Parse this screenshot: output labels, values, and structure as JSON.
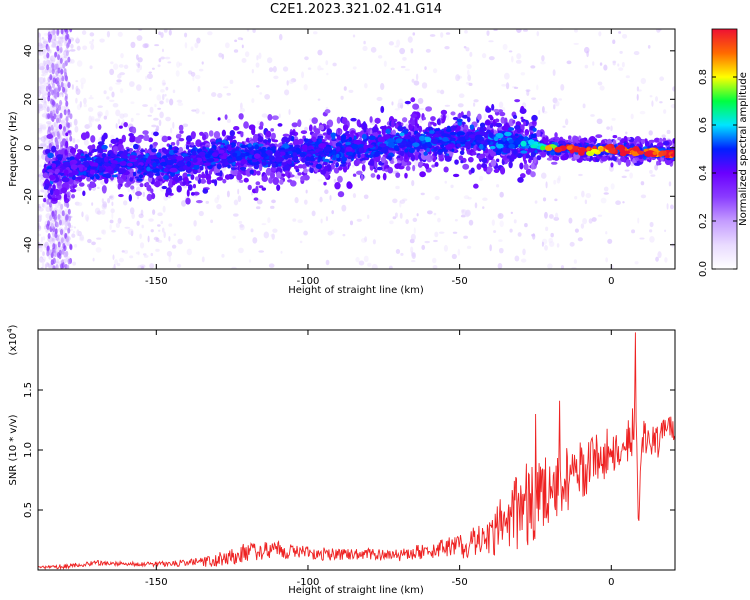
{
  "title": "C2E1.2023.321.02.41.G14",
  "colors": {
    "snr_line": "#ee2222",
    "colormap": [
      "#ffffff",
      "#e9dbff",
      "#c49cff",
      "#8a3cff",
      "#6a00ff",
      "#0020ff",
      "#00e5ff",
      "#00ff40",
      "#ffff00",
      "#ff6a00",
      "#ee1133"
    ]
  },
  "chart_data": [
    {
      "type": "heatmap",
      "xlabel": "Height of straight line (km)",
      "ylabel": "Frequency (Hz)",
      "xlim": [
        -189,
        21
      ],
      "ylim": [
        -50,
        49
      ],
      "xticks": [
        -150,
        -100,
        -50,
        0
      ],
      "yticks": [
        -40,
        -20,
        0,
        20,
        40
      ],
      "ridge": {
        "x": [
          -185,
          -180,
          -170,
          -160,
          -150,
          -140,
          -130,
          -120,
          -110,
          -100,
          -90,
          -80,
          -70,
          -60,
          -50,
          -40,
          -30,
          -25,
          -20,
          -15,
          -10,
          -5,
          0,
          5,
          10,
          15,
          20
        ],
        "frequency_hz": [
          -10,
          -9,
          -7,
          -6,
          -7,
          -6,
          -3,
          -4,
          -3,
          -2,
          -1,
          0,
          2,
          3,
          4,
          3,
          2,
          1,
          0,
          0,
          -1,
          -1,
          -1,
          -1,
          -2,
          -2,
          -2
        ],
        "normalized_amplitude": [
          0.35,
          0.4,
          0.45,
          0.45,
          0.45,
          0.45,
          0.45,
          0.45,
          0.45,
          0.45,
          0.45,
          0.45,
          0.5,
          0.5,
          0.45,
          0.5,
          0.55,
          0.6,
          0.8,
          1.0,
          1.0,
          0.85,
          0.95,
          1.0,
          0.95,
          1.0,
          1.0
        ]
      },
      "colorbar": {
        "label": "Normalized spectral amplitude",
        "range": [
          0,
          1
        ],
        "ticks": [
          "0.0",
          "0.2",
          "0.4",
          "0.6",
          "0.8"
        ]
      }
    },
    {
      "type": "line",
      "xlabel": "Height of straight line (km)",
      "ylabel": "SNR (10 * v/v)",
      "ylabel_multiplier": "(x10",
      "ylabel_multiplier_exp": "4",
      "ylabel_multiplier_close": ")",
      "xlim": [
        -189,
        21
      ],
      "ylim": [
        0,
        2.0
      ],
      "xticks": [
        -150,
        -100,
        -50,
        0
      ],
      "yticks": [
        0.5,
        1.0,
        1.5
      ],
      "series": [
        {
          "x": [
            -189,
            -180,
            -170,
            -160,
            -150,
            -140,
            -130,
            -120,
            -110,
            -100,
            -90,
            -80,
            -70,
            -60,
            -50,
            -40,
            -35,
            -30,
            -25,
            -20,
            -15,
            -10,
            -5,
            0,
            5,
            8,
            9,
            10,
            15,
            20,
            21
          ],
          "y": [
            0.02,
            0.03,
            0.06,
            0.05,
            0.05,
            0.06,
            0.08,
            0.15,
            0.17,
            0.14,
            0.13,
            0.13,
            0.12,
            0.17,
            0.2,
            0.25,
            0.45,
            0.5,
            0.6,
            0.65,
            0.78,
            0.82,
            0.92,
            1.0,
            1.05,
            1.2,
            0.35,
            1.1,
            1.05,
            1.2,
            1.15
          ],
          "noise_amplitude": [
            0.01,
            0.02,
            0.02,
            0.02,
            0.02,
            0.03,
            0.06,
            0.08,
            0.07,
            0.06,
            0.05,
            0.05,
            0.05,
            0.07,
            0.1,
            0.18,
            0.25,
            0.35,
            0.35,
            0.3,
            0.3,
            0.25,
            0.22,
            0.2,
            0.15,
            0.35,
            0.0,
            0.15,
            0.15,
            0.12,
            0.1
          ],
          "peaks": [
            {
              "x": 8,
              "y": 1.98
            },
            {
              "x": -17,
              "y": 1.41
            },
            {
              "x": -25,
              "y": 1.3
            },
            {
              "x": -17.5,
              "y": 0.62
            }
          ]
        }
      ]
    }
  ]
}
